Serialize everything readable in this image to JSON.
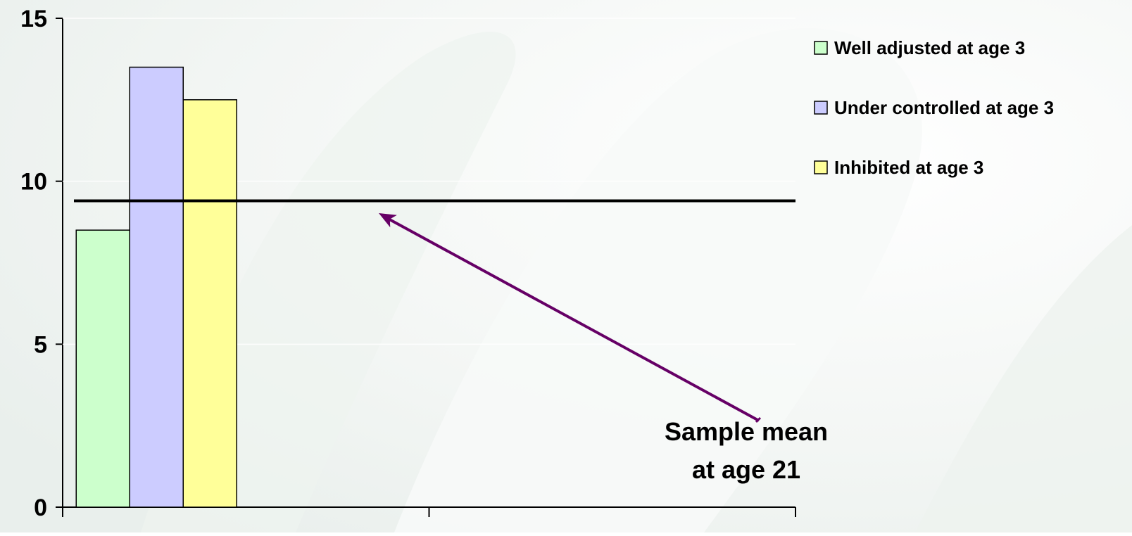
{
  "chart_data": {
    "type": "bar",
    "y_ticks": [
      "0",
      "5",
      "10",
      "15"
    ],
    "ylim": [
      0,
      15
    ],
    "grid": false,
    "categories": [
      "",
      ""
    ],
    "series": [
      {
        "name": "Well adjusted at age 3",
        "color": "#CCFFCC",
        "values": [
          8.5,
          null
        ]
      },
      {
        "name": "Under controlled at age 3",
        "color": "#CCCCFF",
        "values": [
          13.5,
          null
        ]
      },
      {
        "name": "Inhibited at age 3",
        "color": "#FFFF99",
        "values": [
          12.5,
          null
        ]
      }
    ],
    "reference_line": {
      "value": 9.4,
      "color": "#000000"
    },
    "annotation": {
      "lines": [
        "Sample mean",
        "at age 21"
      ],
      "arrow_color": "#660066"
    },
    "legend_position": "top-right"
  }
}
